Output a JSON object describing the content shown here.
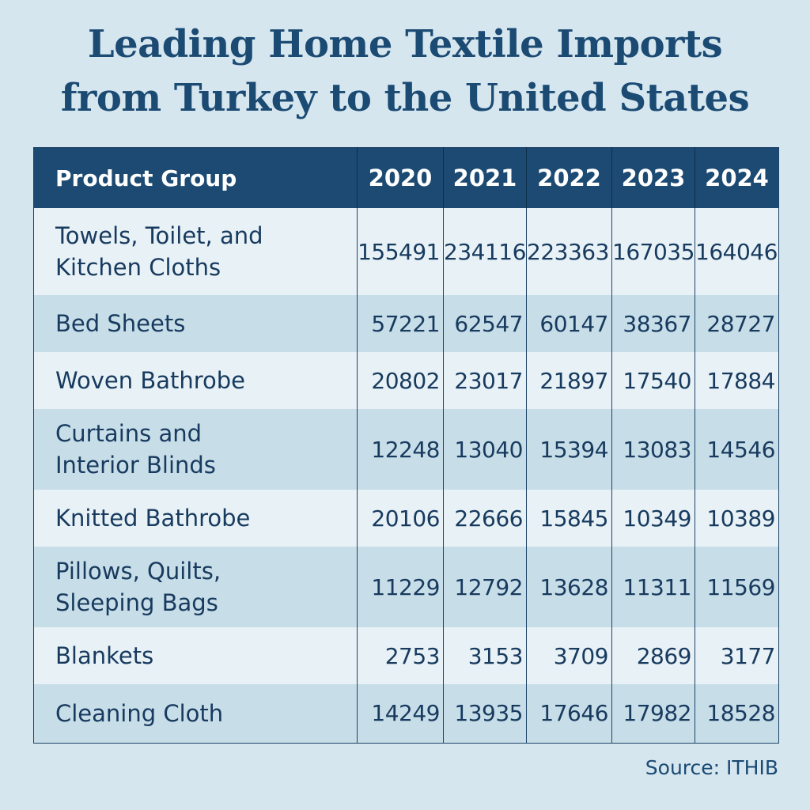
{
  "title": {
    "line1": "Leading Home Textile Imports",
    "line2": "from Turkey to the United States"
  },
  "chart_data": {
    "type": "table",
    "title": "Leading Home Textile Imports from Turkey to the United States",
    "columns": [
      "Product Group",
      "2020",
      "2021",
      "2022",
      "2023",
      "2024"
    ],
    "rows": [
      {
        "label": "Towels, Toilet, and Kitchen Cloths",
        "line1": "Towels, Toilet, and",
        "line2": "Kitchen Cloths",
        "values": [
          "155491",
          "234116",
          "223363",
          "167035",
          "164046"
        ]
      },
      {
        "label": "Bed Sheets",
        "line1": "Bed Sheets",
        "line2": "",
        "values": [
          "57221",
          "62547",
          "60147",
          "38367",
          "28727"
        ]
      },
      {
        "label": "Woven Bathrobe",
        "line1": "Woven Bathrobe",
        "line2": "",
        "values": [
          "20802",
          "23017",
          "21897",
          "17540",
          "17884"
        ]
      },
      {
        "label": "Curtains and Interior Blinds",
        "line1": "Curtains and",
        "line2": "Interior Blinds",
        "values": [
          "12248",
          "13040",
          "15394",
          "13083",
          "14546"
        ]
      },
      {
        "label": "Knitted Bathrobe",
        "line1": "Knitted Bathrobe",
        "line2": "",
        "values": [
          "20106",
          "22666",
          "15845",
          "10349",
          "10389"
        ]
      },
      {
        "label": "Pillows, Quilts, Sleeping Bags",
        "line1": "Pillows, Quilts,",
        "line2": "Sleeping Bags",
        "values": [
          "11229",
          "12792",
          "13628",
          "11311",
          "11569"
        ]
      },
      {
        "label": "Blankets",
        "line1": "Blankets",
        "line2": "",
        "values": [
          "2753",
          "3153",
          "3709",
          "2869",
          "3177"
        ]
      },
      {
        "label": "Cleaning Cloth",
        "line1": "Cleaning Cloth",
        "line2": "",
        "values": [
          "14249",
          "13935",
          "17646",
          "17982",
          "18528"
        ]
      }
    ]
  },
  "source": "Source: ITHIB",
  "colors": {
    "background": "#d5e6ef",
    "header": "#1c4a72",
    "title": "#1b4a73",
    "row_light": "#e7f1f6",
    "row_dark": "#c7dde8"
  }
}
